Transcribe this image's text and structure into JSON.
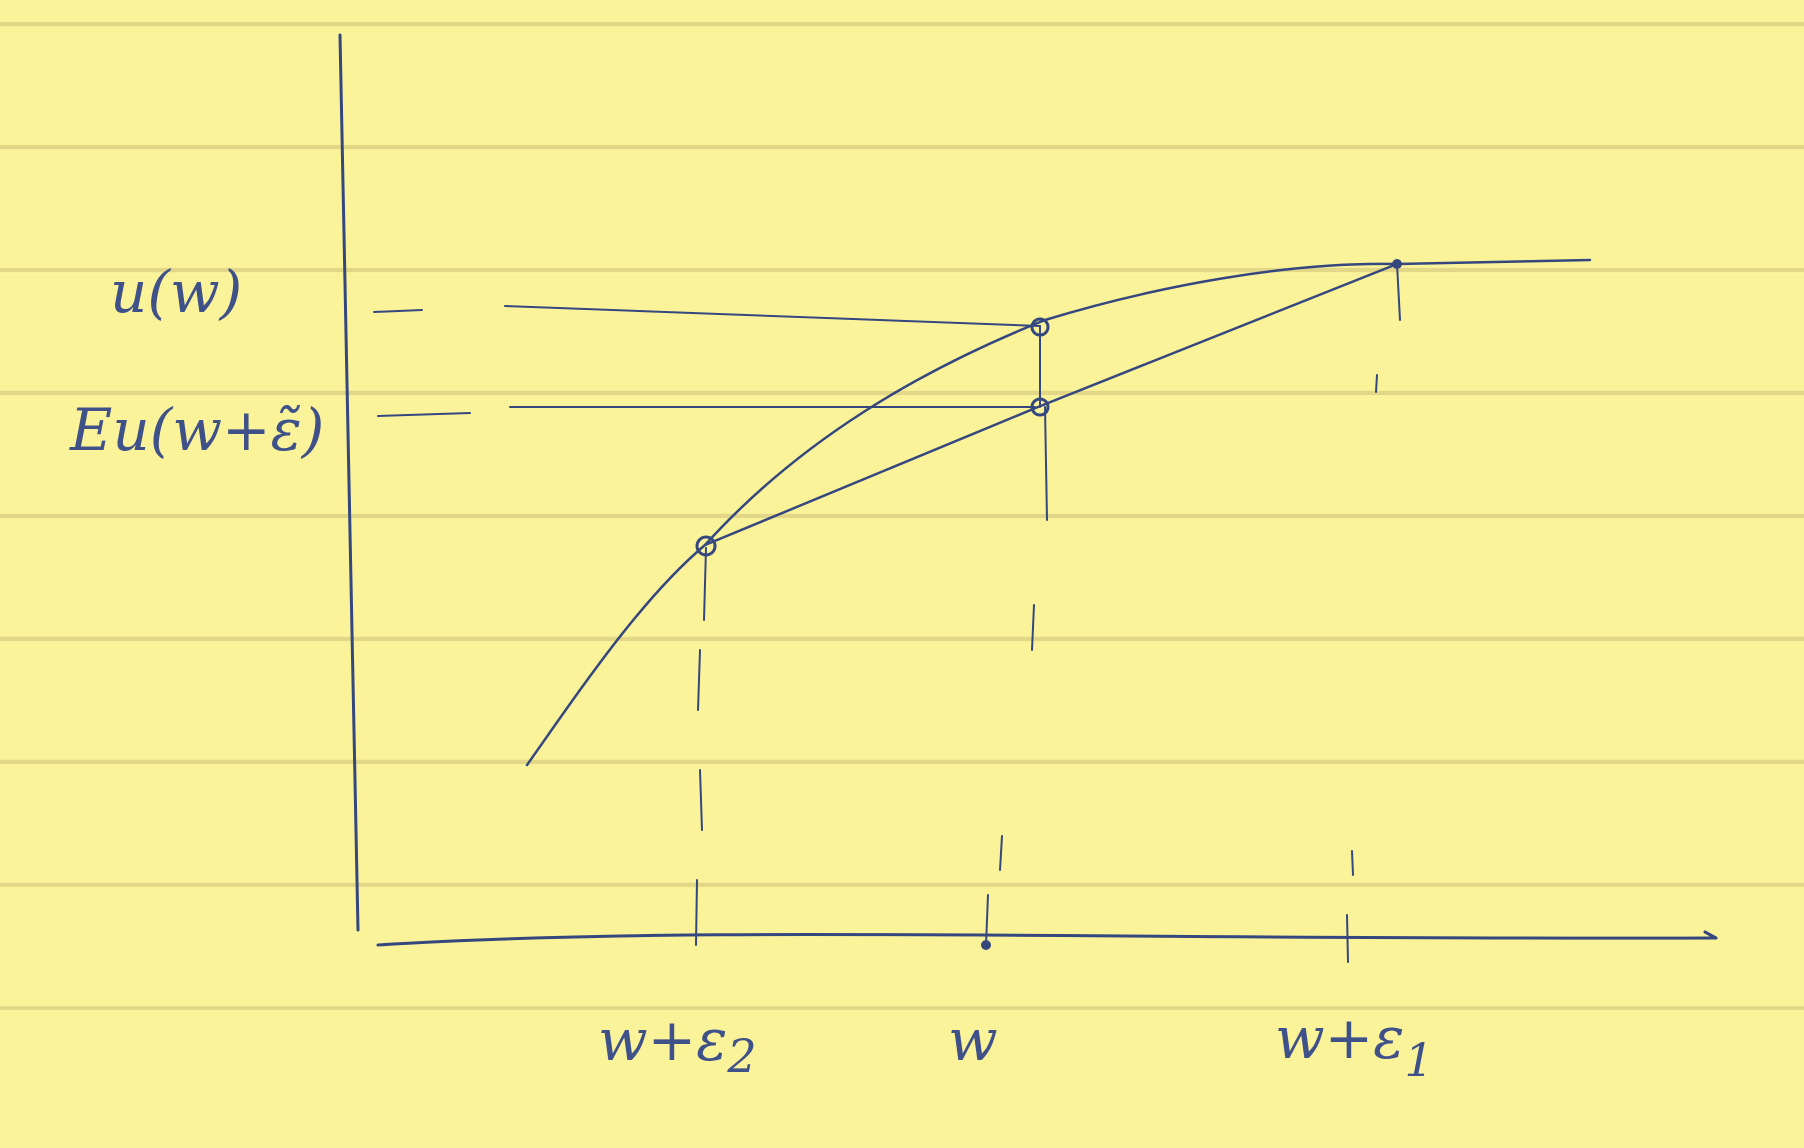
{
  "labels": {
    "u_w": "u(w)",
    "eu_w_eps": "Eu(w+ε̃)",
    "x_w_eps2": "w+ε",
    "x_w_eps2_sub": "2",
    "x_w": "w",
    "x_w_eps1": "w+ε",
    "x_w_eps1_sub": "1"
  },
  "colors": {
    "paper": "#fbf39a",
    "ink": "#34477e",
    "rule_line": "#cdbe78"
  }
}
